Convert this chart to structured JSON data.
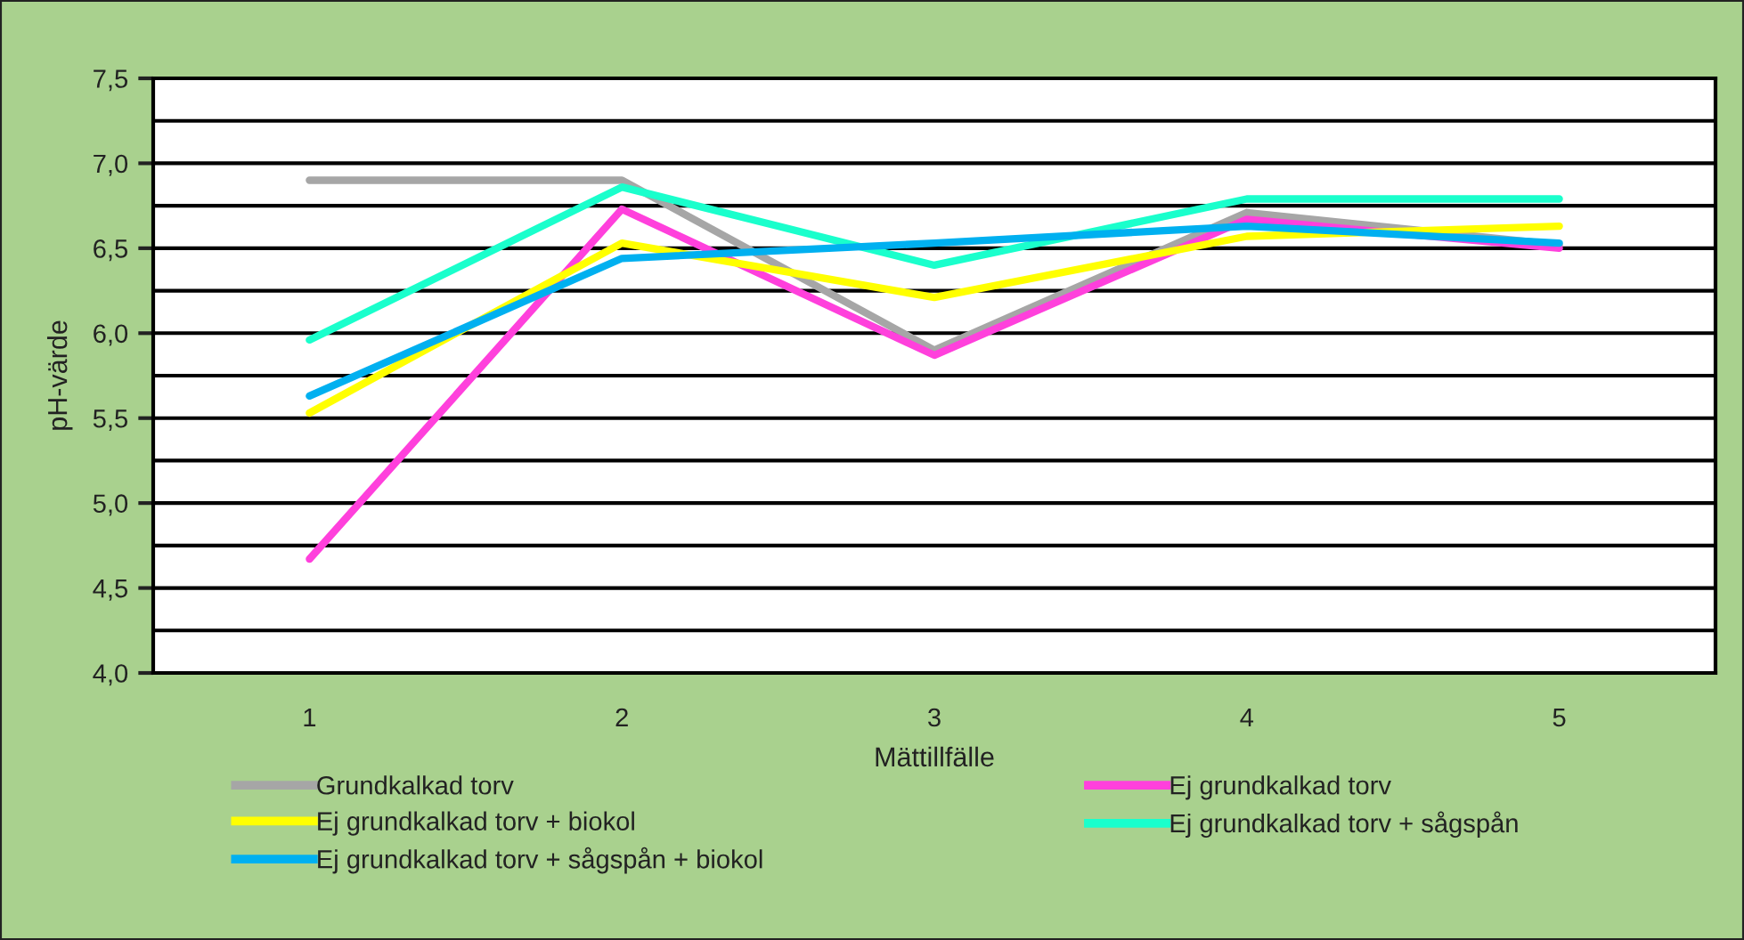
{
  "chart_data": {
    "type": "line",
    "xlabel": "Mättillfälle",
    "ylabel": "pH-värde",
    "categories": [
      "1",
      "2",
      "3",
      "4",
      "5"
    ],
    "series": [
      {
        "name": "Grundkalkad torv",
        "color": "#a6a6a6",
        "values": [
          6.9,
          6.9,
          5.9,
          6.71,
          6.52
        ]
      },
      {
        "name": "Ej grundkalkad torv",
        "color": "#ff40dc",
        "values": [
          4.67,
          6.73,
          5.87,
          6.67,
          6.5
        ]
      },
      {
        "name": "Ej grundkalkad torv + biokol",
        "color": "#ffff00",
        "values": [
          5.53,
          6.53,
          6.21,
          6.57,
          6.63
        ]
      },
      {
        "name": "Ej grundkalkad torv + sågspån",
        "color": "#1affcc",
        "values": [
          5.96,
          6.86,
          6.4,
          6.79,
          6.79
        ]
      },
      {
        "name": "Ej grundkalkad torv + sågspån + biokol",
        "color": "#00b0f0",
        "values": [
          5.63,
          6.44,
          6.53,
          6.63,
          6.53
        ]
      }
    ],
    "ylim": [
      4.0,
      7.5
    ],
    "yticks": [
      {
        "value": 4.0,
        "label": "4,0"
      },
      {
        "value": 4.25,
        "label": null
      },
      {
        "value": 4.5,
        "label": "4,5"
      },
      {
        "value": 4.75,
        "label": null
      },
      {
        "value": 5.0,
        "label": "5,0"
      },
      {
        "value": 5.25,
        "label": null
      },
      {
        "value": 5.5,
        "label": "5,5"
      },
      {
        "value": 5.75,
        "label": null
      },
      {
        "value": 6.0,
        "label": "6,0"
      },
      {
        "value": 6.25,
        "label": null
      },
      {
        "value": 6.5,
        "label": "6,5"
      },
      {
        "value": 6.75,
        "label": null
      },
      {
        "value": 7.0,
        "label": "7,0"
      },
      {
        "value": 7.25,
        "label": null
      },
      {
        "value": 7.5,
        "label": "7,5"
      }
    ],
    "grid": "y",
    "legend": "bottom",
    "marker": "none",
    "line_style": "solid"
  }
}
